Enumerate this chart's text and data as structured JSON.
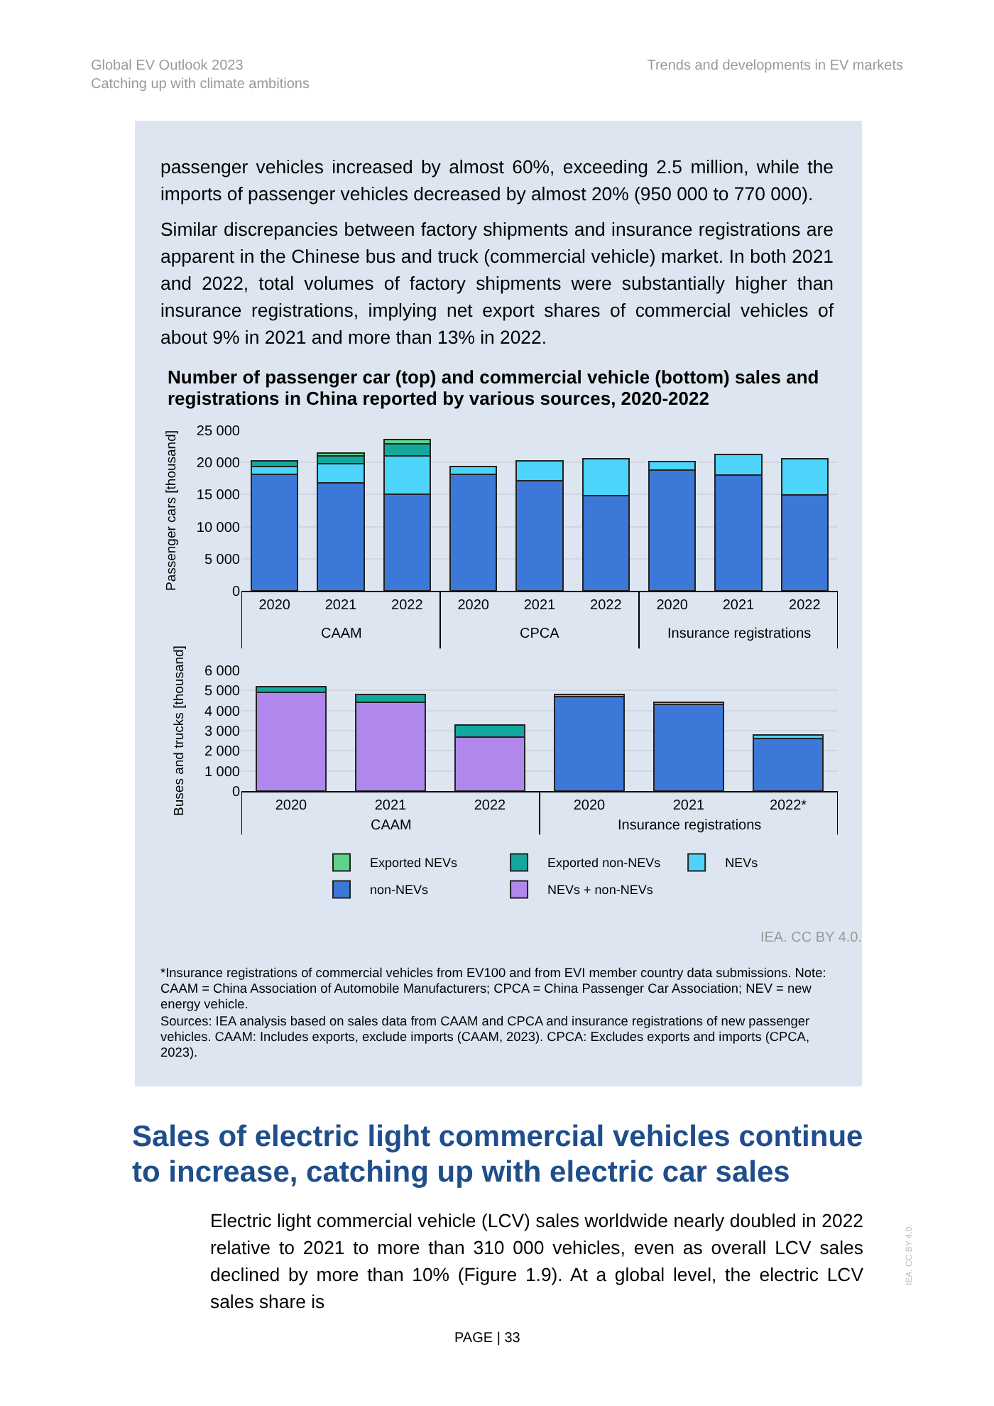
{
  "chart_data": [
    {
      "type": "other",
      "annotations": [
        "Global EV Outlook 2023",
        "Catching up with climate ambitions",
        "Trends and developments in EV markets",
        "passenger vehicles increased by almost 60%, exceeding 2.5 million, while the imports of passenger vehicles decreased by almost 20% (950 000 to 770 000).",
        "Similar discrepancies between factory shipments and insurance registrations are apparent in the Chinese bus and truck (commercial vehicle) market. In both 2021 and 2022, total volumes of factory shipments were substantially higher than insurance registrations, implying net export shares of commercial vehicles of about 9% in 2021 and more than 13% in 2022."
      ]
    },
    {
      "type": "bar",
      "stacked": true,
      "title": "Number of passenger car (top) and commercial vehicle (bottom) sales and registrations in China reported by various sources, 2020-2022",
      "ylabel": "Passenger cars [thousand]",
      "categories": [
        "2020",
        "2021",
        "2022",
        "2020",
        "2021",
        "2022",
        "2020",
        "2021",
        "2022"
      ],
      "annotations": [
        "CAAM",
        "CPCA",
        "Insurance registrations"
      ],
      "series": [
        {
          "color": "#3c78d8",
          "values": [
            18100,
            16800,
            15000,
            18100,
            17100,
            14800,
            18800,
            18000,
            14900
          ]
        },
        {
          "color": "#4dd4fb",
          "values": [
            1300,
            3000,
            6000,
            1300,
            3100,
            5800,
            1300,
            3200,
            5700
          ]
        },
        {
          "color": "#13a89e",
          "values": [
            800,
            1200,
            1900,
            null,
            null,
            null,
            null,
            null,
            null
          ]
        },
        {
          "color": "#5ed48a",
          "values": [
            null,
            500,
            700,
            null,
            null,
            null,
            null,
            null,
            null
          ]
        }
      ],
      "ylim": [
        0,
        25000
      ],
      "yticks": [
        0,
        {
          "value": 5000,
          "label": "5 000"
        },
        {
          "value": 10000,
          "label": "10 000"
        },
        {
          "value": 15000,
          "label": "15 000"
        },
        {
          "value": 20000,
          "label": "20 000"
        },
        {
          "value": 25000,
          "label": "25 000"
        }
      ],
      "grid": "y",
      "legend": false
    },
    {
      "type": "bar",
      "stacked": true,
      "ylabel": "Buses and trucks [thousand]",
      "categories": [
        "2020",
        "2021",
        "2022",
        "2020",
        "2021",
        "2022*"
      ],
      "annotations": [
        "CAAM",
        "Insurance registrations"
      ],
      "series": [
        {
          "name": "NEVs + non-NEVs",
          "color": "#b088ec",
          "values": [
            4900,
            4400,
            2700,
            null,
            null,
            null
          ]
        },
        {
          "name": "non-NEVs",
          "color": "#3c78d8",
          "values": [
            null,
            null,
            null,
            4700,
            4300,
            2600
          ]
        },
        {
          "name": "NEVs",
          "color": "#4dd4fb",
          "values": [
            null,
            null,
            null,
            100,
            100,
            200
          ]
        },
        {
          "name": "Exported non-NEVs",
          "color": "#13a89e",
          "values": [
            300,
            400,
            600,
            null,
            null,
            null
          ]
        },
        {
          "name": "Exported NEVs",
          "color": "#5ed48a",
          "values": [
            null,
            null,
            null,
            null,
            null,
            null
          ]
        }
      ],
      "ylim": [
        0,
        6000
      ],
      "yticks": [
        0,
        {
          "value": 1000,
          "label": "1 000"
        },
        {
          "value": 2000,
          "label": "2 000"
        },
        {
          "value": 3000,
          "label": "3 000"
        },
        {
          "value": 4000,
          "label": "4 000"
        },
        {
          "value": 5000,
          "label": "5 000"
        },
        {
          "value": 6000,
          "label": "6 000"
        }
      ],
      "grid": "y",
      "legend": "bottom"
    },
    {
      "type": "other",
      "title": "Sales of electric light commercial vehicles continue to increase, catching up with electric car sales",
      "annotations": [
        "IEA. CC BY 4.0.",
        "*Insurance registrations of commercial vehicles from EV100 and from EVI member country data submissions. Note: CAAM = China Association of Automobile Manufacturers; CPCA = China Passenger Car Association; NEV = new energy vehicle.",
        "Sources: IEA analysis based on sales data from CAAM and CPCA and insurance registrations of new passenger vehicles. CAAM: Includes exports, exclude imports (CAAM, 2023). CPCA: Excludes exports and imports (CPCA, 2023).",
        "Electric light commercial vehicle (LCV) sales worldwide nearly doubled in 2022 relative to 2021 to more than 310 000 vehicles, even as overall LCV sales declined by more than 10% (Figure 1.9). At a global level, the electric LCV sales share is",
        "PAGE | 33",
        "IEA. CC BY 4.0."
      ]
    }
  ]
}
